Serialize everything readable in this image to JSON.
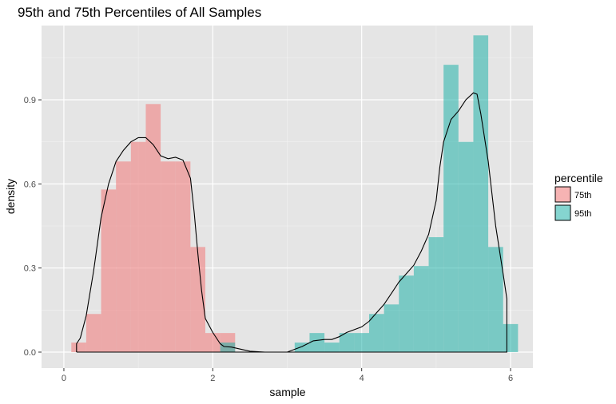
{
  "chart_data": {
    "type": "histogram-density",
    "title": "95th and 75th Percentiles of All Samples",
    "xlabel": "sample",
    "ylabel": "density",
    "xlim": [
      -0.3,
      6.3
    ],
    "ylim": [
      -0.057,
      1.165
    ],
    "x_ticks": [
      0,
      2,
      4,
      6
    ],
    "y_ticks": [
      0.0,
      0.3,
      0.6,
      0.9
    ],
    "y_tick_labels": [
      "0.0",
      "0.3",
      "0.6",
      "0.9"
    ],
    "panel_background": "#e5e5e5",
    "grid": true,
    "legend": {
      "title": "percentile",
      "position": "right"
    },
    "bin_width": 0.2,
    "series": [
      {
        "name": "75th",
        "color": "#f08080",
        "fill_opacity": 0.6,
        "bins": [
          {
            "x0": 0.1,
            "x1": 0.3,
            "y": 0.034
          },
          {
            "x0": 0.3,
            "x1": 0.5,
            "y": 0.136
          },
          {
            "x0": 0.5,
            "x1": 0.7,
            "y": 0.58
          },
          {
            "x0": 0.7,
            "x1": 0.9,
            "y": 0.68
          },
          {
            "x0": 0.9,
            "x1": 1.1,
            "y": 0.75
          },
          {
            "x0": 1.1,
            "x1": 1.3,
            "y": 0.885
          },
          {
            "x0": 1.3,
            "x1": 1.5,
            "y": 0.68
          },
          {
            "x0": 1.5,
            "x1": 1.7,
            "y": 0.68
          },
          {
            "x0": 1.7,
            "x1": 1.9,
            "y": 0.375
          },
          {
            "x0": 1.9,
            "x1": 2.1,
            "y": 0.068
          },
          {
            "x0": 2.1,
            "x1": 2.3,
            "y": 0.068
          }
        ]
      },
      {
        "name": "95th",
        "color": "#20b2aa",
        "fill_opacity": 0.55,
        "bins": [
          {
            "x0": 2.1,
            "x1": 2.3,
            "y": 0.034
          },
          {
            "x0": 3.1,
            "x1": 3.3,
            "y": 0.034
          },
          {
            "x0": 3.3,
            "x1": 3.5,
            "y": 0.068
          },
          {
            "x0": 3.5,
            "x1": 3.7,
            "y": 0.034
          },
          {
            "x0": 3.7,
            "x1": 3.9,
            "y": 0.068
          },
          {
            "x0": 3.9,
            "x1": 4.1,
            "y": 0.068
          },
          {
            "x0": 4.1,
            "x1": 4.3,
            "y": 0.136
          },
          {
            "x0": 4.3,
            "x1": 4.5,
            "y": 0.17
          },
          {
            "x0": 4.5,
            "x1": 4.7,
            "y": 0.273
          },
          {
            "x0": 4.7,
            "x1": 4.9,
            "y": 0.307
          },
          {
            "x0": 4.9,
            "x1": 5.1,
            "y": 0.41
          },
          {
            "x0": 5.1,
            "x1": 5.3,
            "y": 1.025
          },
          {
            "x0": 5.3,
            "x1": 5.5,
            "y": 0.75
          },
          {
            "x0": 5.5,
            "x1": 5.7,
            "y": 1.13
          },
          {
            "x0": 5.7,
            "x1": 5.9,
            "y": 0.375
          },
          {
            "x0": 5.9,
            "x1": 6.1,
            "y": 0.1
          }
        ]
      }
    ],
    "density_curve": {
      "color": "#000000",
      "points": [
        [
          0.17,
          0.0
        ],
        [
          0.17,
          0.03
        ],
        [
          0.22,
          0.05
        ],
        [
          0.3,
          0.13
        ],
        [
          0.4,
          0.29
        ],
        [
          0.5,
          0.48
        ],
        [
          0.6,
          0.6
        ],
        [
          0.7,
          0.68
        ],
        [
          0.8,
          0.72
        ],
        [
          0.9,
          0.75
        ],
        [
          1.0,
          0.765
        ],
        [
          1.1,
          0.765
        ],
        [
          1.2,
          0.74
        ],
        [
          1.3,
          0.7
        ],
        [
          1.4,
          0.69
        ],
        [
          1.5,
          0.695
        ],
        [
          1.6,
          0.685
        ],
        [
          1.7,
          0.62
        ],
        [
          1.75,
          0.5
        ],
        [
          1.8,
          0.35
        ],
        [
          1.85,
          0.22
        ],
        [
          1.9,
          0.12
        ],
        [
          2.0,
          0.07
        ],
        [
          2.1,
          0.03
        ],
        [
          2.15,
          0.02
        ],
        [
          2.25,
          0.018
        ],
        [
          2.35,
          0.012
        ],
        [
          2.5,
          0.003
        ],
        [
          2.7,
          0.0
        ],
        [
          3.0,
          0.0
        ],
        [
          3.2,
          0.02
        ],
        [
          3.35,
          0.04
        ],
        [
          3.5,
          0.045
        ],
        [
          3.6,
          0.045
        ],
        [
          3.7,
          0.055
        ],
        [
          3.8,
          0.07
        ],
        [
          3.9,
          0.08
        ],
        [
          4.0,
          0.09
        ],
        [
          4.1,
          0.11
        ],
        [
          4.2,
          0.14
        ],
        [
          4.3,
          0.17
        ],
        [
          4.4,
          0.21
        ],
        [
          4.5,
          0.25
        ],
        [
          4.6,
          0.28
        ],
        [
          4.7,
          0.31
        ],
        [
          4.8,
          0.36
        ],
        [
          4.9,
          0.42
        ],
        [
          5.0,
          0.54
        ],
        [
          5.05,
          0.66
        ],
        [
          5.1,
          0.75
        ],
        [
          5.2,
          0.83
        ],
        [
          5.3,
          0.86
        ],
        [
          5.4,
          0.9
        ],
        [
          5.5,
          0.925
        ],
        [
          5.55,
          0.92
        ],
        [
          5.6,
          0.85
        ],
        [
          5.7,
          0.68
        ],
        [
          5.8,
          0.45
        ],
        [
          5.9,
          0.28
        ],
        [
          5.95,
          0.19
        ],
        [
          5.95,
          0.0
        ],
        [
          0.17,
          0.0
        ]
      ]
    }
  }
}
